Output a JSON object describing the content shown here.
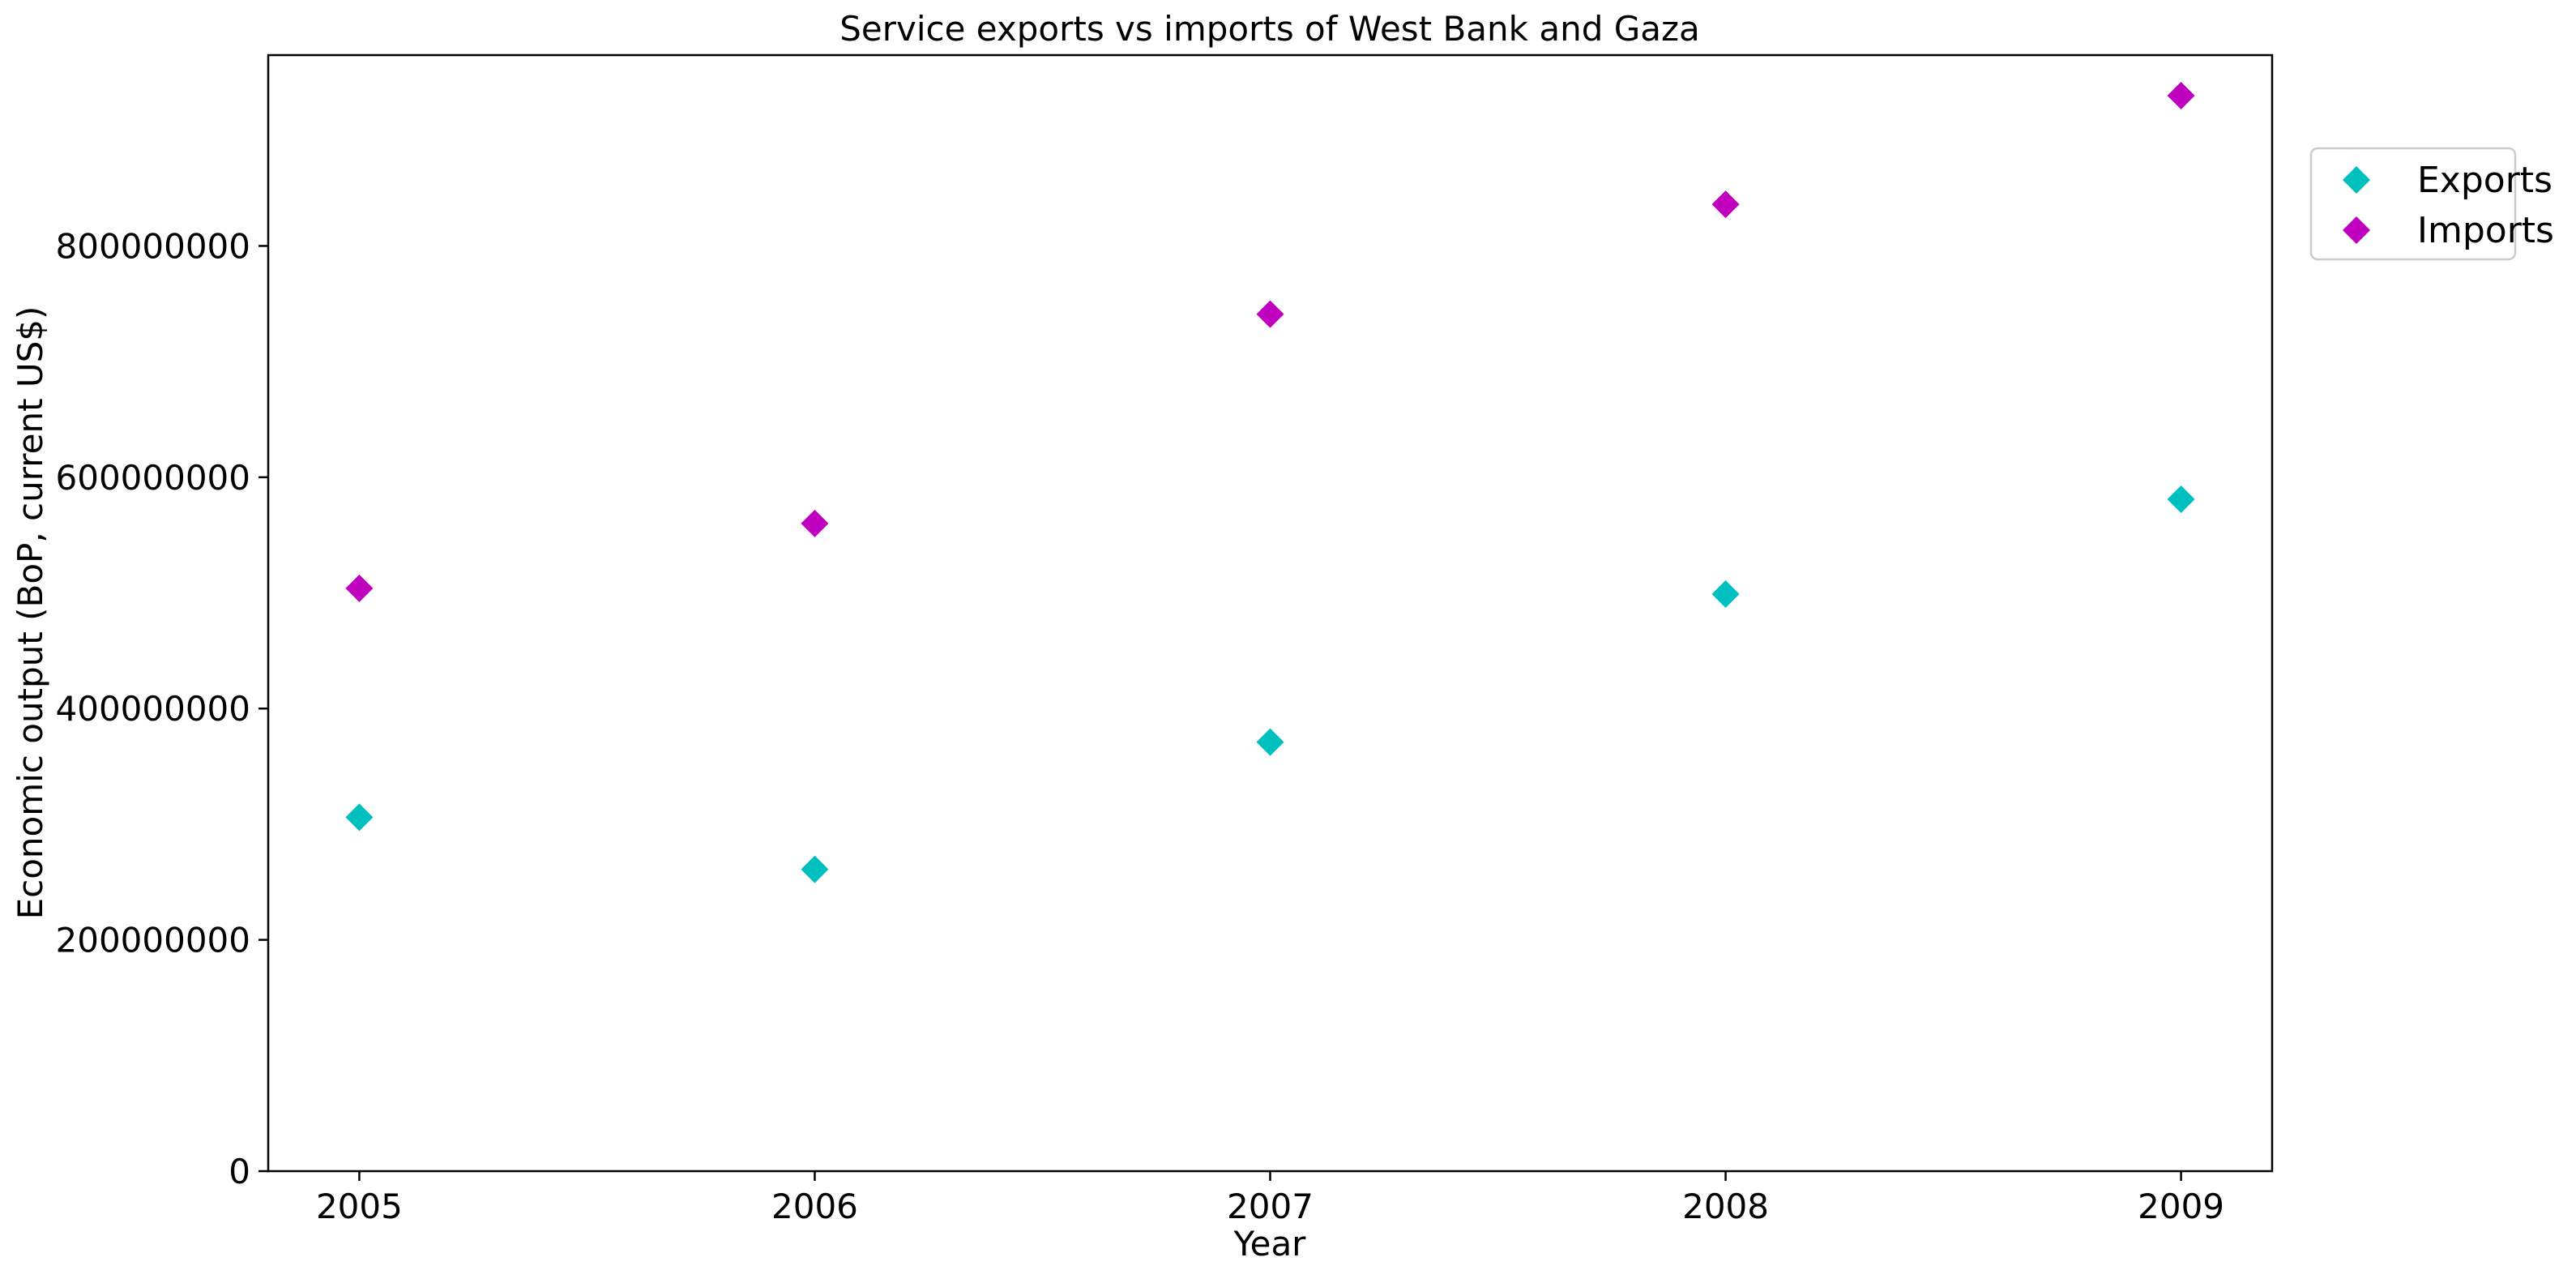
{
  "chart_data": {
    "type": "scatter",
    "title": "Service exports vs imports of West Bank and Gaza",
    "xlabel": "Year",
    "ylabel": "Economic output (BoP, current US$)",
    "x": [
      2005,
      2006,
      2007,
      2008,
      2009
    ],
    "x_tick_labels": [
      "2005",
      "2006",
      "2007",
      "2008",
      "2009"
    ],
    "y_ticks": [
      0,
      200000000,
      400000000,
      600000000,
      800000000
    ],
    "y_tick_labels": [
      "0",
      "200000000",
      "400000000",
      "600000000",
      "800000000"
    ],
    "xlim": [
      2004.8,
      2009.2
    ],
    "ylim": [
      0,
      965000000
    ],
    "grid": false,
    "legend_position": "outside-top-right",
    "marker": "diamond",
    "series": [
      {
        "name": "Exports",
        "color": "#00bfbf",
        "values": [
          306000000,
          261000000,
          371000000,
          499000000,
          581000000
        ]
      },
      {
        "name": "Imports",
        "color": "#bf00bf",
        "values": [
          504000000,
          560000000,
          741000000,
          836000000,
          930000000
        ]
      }
    ]
  }
}
